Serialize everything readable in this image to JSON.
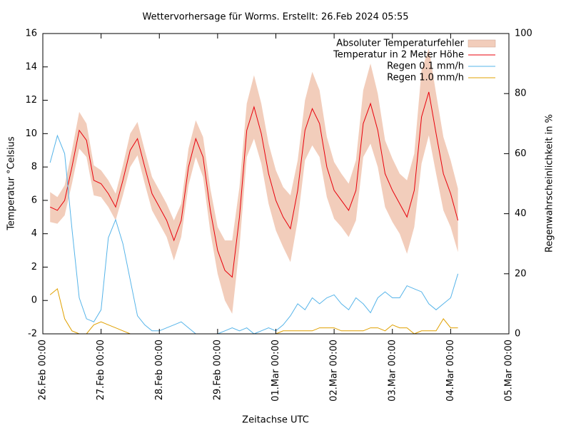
{
  "chart_data": {
    "type": "line",
    "title": "Wettervorhersage für Worms. Erstellt: 26.Feb 2024 05:55",
    "x_label": "Zeitachse UTC",
    "y_label": "Temperatur °Celsius",
    "y2_label": "Regenwahrscheinlichkeit in %",
    "x": [
      3,
      6,
      9,
      12,
      15,
      18,
      21,
      24,
      27,
      30,
      33,
      36,
      39,
      42,
      45,
      48,
      51,
      54,
      57,
      60,
      63,
      66,
      69,
      72,
      75,
      78,
      81,
      84,
      87,
      90,
      93,
      96,
      99,
      102,
      105,
      108,
      111,
      114,
      117,
      120,
      123,
      126,
      129,
      132,
      135,
      138,
      141,
      144,
      147,
      150,
      153,
      156,
      159,
      162,
      165,
      168,
      171
    ],
    "xlim": [
      0,
      192
    ],
    "xticks": [
      {
        "value": 0,
        "label": "26.Feb 00:00"
      },
      {
        "value": 24,
        "label": "27.Feb 00:00"
      },
      {
        "value": 48,
        "label": "28.Feb 00:00"
      },
      {
        "value": 72,
        "label": "29.Feb 00:00"
      },
      {
        "value": 96,
        "label": "01.Mar 00:00"
      },
      {
        "value": 120,
        "label": "02.Mar 00:00"
      },
      {
        "value": 144,
        "label": "03.Mar 00:00"
      },
      {
        "value": 168,
        "label": "04.Mar 00:00"
      },
      {
        "value": 192,
        "label": "05.Mar 00:00"
      }
    ],
    "ylim": [
      -2,
      16
    ],
    "yticks": [
      -2,
      0,
      2,
      4,
      6,
      8,
      10,
      12,
      14,
      16
    ],
    "y2lim": [
      0,
      100
    ],
    "y2ticks": [
      0,
      20,
      40,
      60,
      80,
      100
    ],
    "legend": "upper right",
    "grid": false,
    "series": [
      {
        "name": "Absoluter Temperaturfehler",
        "color": "#f2cdbb",
        "style": "band",
        "around": 1,
        "values": [
          0.9,
          0.8,
          0.9,
          1.0,
          1.1,
          1.0,
          0.9,
          0.8,
          0.8,
          0.8,
          0.9,
          1.0,
          1.0,
          1.0,
          1.0,
          1.0,
          1.0,
          1.2,
          1.0,
          1.1,
          1.1,
          1.2,
          1.3,
          1.4,
          1.8,
          2.2,
          1.8,
          1.6,
          1.9,
          1.8,
          1.8,
          1.8,
          1.8,
          2.0,
          1.8,
          1.8,
          2.2,
          2.0,
          1.8,
          1.7,
          1.6,
          1.6,
          1.8,
          2.0,
          2.4,
          2.2,
          2.0,
          1.9,
          1.8,
          2.2,
          2.2,
          2.8,
          2.6,
          2.4,
          2.2,
          2.0,
          1.9
        ]
      },
      {
        "name": "Temperatur in 2 Meter Höhe",
        "color": "#e8000b",
        "values": [
          5.6,
          5.4,
          6.0,
          8.0,
          10.2,
          9.6,
          7.2,
          7.0,
          6.4,
          5.6,
          7.2,
          9.0,
          9.7,
          8.0,
          6.4,
          5.6,
          4.8,
          3.6,
          4.8,
          8.0,
          9.7,
          8.6,
          5.4,
          3.0,
          1.8,
          1.4,
          5.0,
          10.2,
          11.6,
          10.0,
          7.6,
          6.0,
          5.0,
          4.3,
          6.6,
          10.2,
          11.5,
          10.6,
          8.0,
          6.6,
          6.0,
          5.4,
          6.6,
          10.6,
          11.8,
          10.2,
          7.6,
          6.6,
          5.8,
          5.0,
          6.6,
          11.0,
          12.5,
          10.0,
          7.6,
          6.4,
          4.8
        ]
      },
      {
        "name": "Regen 0.1 mm/h",
        "color": "#56b4e9",
        "axis": "y2",
        "values": [
          57,
          66,
          60,
          35,
          12,
          5,
          4,
          8,
          32,
          38,
          30,
          18,
          6,
          3,
          1,
          1,
          2,
          3,
          4,
          2,
          0,
          0,
          0,
          0,
          1,
          2,
          1,
          2,
          0,
          1,
          2,
          1,
          3,
          6,
          10,
          8,
          12,
          10,
          12,
          13,
          10,
          8,
          12,
          10,
          7,
          12,
          14,
          12,
          12,
          16,
          15,
          14,
          10,
          8,
          10,
          12,
          20
        ]
      },
      {
        "name": "Regen 1.0 mm/h",
        "color": "#e0a000",
        "axis": "y2",
        "values": [
          13,
          15,
          5,
          1,
          0,
          0,
          3,
          4,
          3,
          2,
          1,
          0,
          0,
          0,
          0,
          0,
          0,
          0,
          0,
          0,
          0,
          0,
          0,
          0,
          0,
          0,
          0,
          0,
          0,
          0,
          0,
          0,
          1,
          1,
          1,
          1,
          1,
          2,
          2,
          2,
          1,
          1,
          1,
          1,
          2,
          2,
          1,
          3,
          2,
          2,
          0,
          1,
          1,
          1,
          5,
          2,
          2
        ]
      }
    ]
  }
}
